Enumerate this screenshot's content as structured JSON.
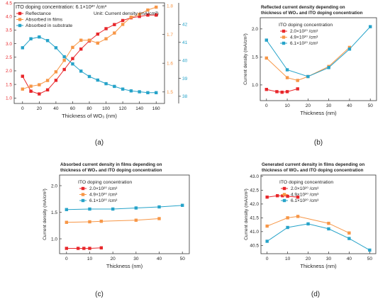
{
  "colors": {
    "red": "#e8262a",
    "orange": "#f79646",
    "blue": "#26a3c9"
  },
  "panels": [
    {
      "label": "(a)",
      "title_lines": [
        "ITO doping concentration: 6.1×10²⁰ /cm³",
        "Unit: Current density (mA/cm²)"
      ],
      "xlabel": "Thickness of WO₃ (nm)",
      "ylabel": "",
      "xlim": [
        -10,
        170
      ],
      "xticks": [
        "0",
        "20",
        "40",
        "60",
        "80",
        "100",
        "120",
        "140",
        "160"
      ],
      "xtick_values": [
        0,
        20,
        40,
        60,
        80,
        100,
        120,
        140,
        160
      ],
      "ylim": [
        0.8,
        4.5
      ],
      "yticks": [
        "1.0",
        "1.5",
        "2.0",
        "2.5",
        "3.0",
        "3.5",
        "4.0",
        "4.5"
      ],
      "ytick_values": [
        1.0,
        1.5,
        2.0,
        2.5,
        3.0,
        3.5,
        4.0,
        4.5
      ],
      "y2lim": [
        1.46,
        1.81
      ],
      "y2ticks": [
        "1.5",
        "1.6",
        "1.7",
        "1.8"
      ],
      "y2tick_values": [
        1.5,
        1.6,
        1.7,
        1.8
      ],
      "y3lim": [
        37.6,
        43.2
      ],
      "y3ticks": [
        "38",
        "39",
        "40",
        "41",
        "42"
      ],
      "y3tick_values": [
        38,
        39,
        40,
        41,
        42
      ],
      "legend_lines": [
        "Reflectance",
        "Absorbed in films",
        "Absorbed in substrate"
      ],
      "series": [
        {
          "name": "Reflectance",
          "color": "#e8262a",
          "axis": "y",
          "x": [
            0,
            10,
            20,
            30,
            40,
            50,
            60,
            70,
            80,
            90,
            100,
            110,
            120,
            130,
            140,
            150,
            160
          ],
          "y": [
            1.8,
            1.25,
            1.15,
            1.3,
            1.65,
            2.05,
            2.45,
            2.8,
            3.1,
            3.35,
            3.55,
            3.7,
            3.85,
            3.95,
            4.0,
            4.05,
            4.05
          ]
        },
        {
          "name": "Absorbed in films",
          "color": "#f79646",
          "axis": "y2",
          "x": [
            0,
            10,
            20,
            30,
            40,
            50,
            60,
            70,
            80,
            90,
            100,
            110,
            120,
            130,
            140,
            150,
            160
          ],
          "y": [
            1.51,
            1.52,
            1.525,
            1.54,
            1.57,
            1.61,
            1.655,
            1.68,
            1.68,
            1.67,
            1.685,
            1.705,
            1.735,
            1.76,
            1.77,
            1.785,
            1.795
          ]
        },
        {
          "name": "Absorbed in substrate",
          "color": "#26a3c9",
          "axis": "y3",
          "x": [
            0,
            10,
            20,
            30,
            40,
            50,
            60,
            70,
            80,
            90,
            100,
            110,
            120,
            130,
            140,
            150,
            160
          ],
          "y": [
            40.7,
            41.2,
            41.3,
            41.1,
            40.7,
            40.2,
            39.8,
            39.4,
            39.1,
            38.9,
            38.7,
            38.55,
            38.4,
            38.3,
            38.25,
            38.2,
            38.2
          ]
        }
      ]
    },
    {
      "label": "(b)",
      "title_lines": [
        "Reflected current density depending on",
        "thickness of WO₃ and ITO doping concentration"
      ],
      "xlabel": "Thickness (nm)",
      "ylabel": "Current density (mA/cm²)",
      "xlim": [
        -3,
        53
      ],
      "xticks": [
        "0",
        "10",
        "20",
        "30",
        "40",
        "50"
      ],
      "xtick_values": [
        0,
        10,
        20,
        30,
        40,
        50
      ],
      "ylim": [
        0.72,
        2.2
      ],
      "yticks": [
        "1.0",
        "1.5",
        "2.0"
      ],
      "ytick_values": [
        1.0,
        1.5,
        2.0
      ],
      "legend_title": "ITO doping concentration",
      "legend_lines": [
        "2.0×10²⁰ /cm³",
        "4.9×10²⁰ /cm³",
        "6.1×10²⁰ /cm³"
      ],
      "series": [
        {
          "name": "2.0×10²⁰ /cm³",
          "color": "#e8262a",
          "x": [
            0,
            5,
            7.5,
            10,
            15
          ],
          "y": [
            0.92,
            0.88,
            0.87,
            0.88,
            0.93
          ]
        },
        {
          "name": "4.9×10²⁰ /cm³",
          "color": "#f79646",
          "x": [
            0,
            10,
            15,
            20,
            30,
            40
          ],
          "y": [
            1.48,
            1.13,
            1.08,
            1.15,
            1.33,
            1.67
          ]
        },
        {
          "name": "6.1×10²⁰ /cm³",
          "color": "#26a3c9",
          "x": [
            0,
            10,
            20,
            30,
            40,
            50
          ],
          "y": [
            1.8,
            1.27,
            1.15,
            1.31,
            1.64,
            2.04
          ]
        }
      ]
    },
    {
      "label": "(c)",
      "title_lines": [
        "Absorbed current density in films depending on",
        "thickness of WO₃ and ITO doping concentration"
      ],
      "xlabel": "Thickness (nm)",
      "ylabel": "Current density (mA/cm²)",
      "xlim": [
        -3,
        53
      ],
      "xticks": [
        "0",
        "10",
        "20",
        "30",
        "40",
        "50"
      ],
      "xtick_values": [
        0,
        10,
        20,
        30,
        40,
        50
      ],
      "ylim": [
        0.72,
        2.2
      ],
      "yticks": [
        "1.0",
        "1.5",
        "2.0"
      ],
      "ytick_values": [
        1.0,
        1.5,
        2.0
      ],
      "legend_title": "ITO doping concentration",
      "legend_lines": [
        "2.0×10²⁰ /cm³",
        "4.9×10²⁰ /cm³",
        "6.1×10²⁰ /cm³"
      ],
      "series": [
        {
          "name": "2.0×10²⁰ /cm³",
          "color": "#e8262a",
          "x": [
            0,
            5,
            7.5,
            10,
            15
          ],
          "y": [
            0.82,
            0.82,
            0.82,
            0.82,
            0.83
          ]
        },
        {
          "name": "4.9×10²⁰ /cm³",
          "color": "#f79646",
          "x": [
            0,
            10,
            15,
            30,
            40
          ],
          "y": [
            1.31,
            1.32,
            1.33,
            1.35,
            1.38
          ]
        },
        {
          "name": "6.1×10²⁰ /cm³",
          "color": "#26a3c9",
          "x": [
            0,
            10,
            20,
            30,
            40,
            50
          ],
          "y": [
            1.55,
            1.56,
            1.56,
            1.58,
            1.6,
            1.63
          ]
        }
      ]
    },
    {
      "label": "(d)",
      "title_lines": [
        "Generated current density in films depending on",
        "thickness of WO₃ and ITO doping concentration"
      ],
      "xlabel": "Thickness (nm)",
      "ylabel": "Current density (mA/cm²)",
      "xlim": [
        -3,
        53
      ],
      "xticks": [
        "0",
        "10",
        "20",
        "30",
        "40",
        "50"
      ],
      "xtick_values": [
        0,
        10,
        20,
        30,
        40,
        50
      ],
      "ylim": [
        40.2,
        43.05
      ],
      "yticks": [
        "40.5",
        "41.0",
        "41.5",
        "42.0",
        "42.5",
        "43.0"
      ],
      "ytick_values": [
        40.5,
        41.0,
        41.5,
        42.0,
        42.5,
        43.0
      ],
      "legend_title": "ITO doping concentration",
      "legend_lines": [
        "2.0×10²⁰ /cm³",
        "4.9×10²⁰ /cm³",
        "6.1×10²⁰ /cm³"
      ],
      "series": [
        {
          "name": "2.0×10²⁰ /cm³",
          "color": "#e8262a",
          "x": [
            0,
            5,
            7.5,
            10,
            15
          ],
          "y": [
            42.25,
            42.3,
            42.3,
            42.28,
            42.25
          ]
        },
        {
          "name": "4.9×10²⁰ /cm³",
          "color": "#f79646",
          "x": [
            0,
            10,
            15,
            30,
            40
          ],
          "y": [
            41.2,
            41.5,
            41.55,
            41.3,
            40.95
          ]
        },
        {
          "name": "6.1×10²⁰ /cm³",
          "color": "#26a3c9",
          "x": [
            0,
            10,
            20,
            30,
            40,
            50
          ],
          "y": [
            40.65,
            41.15,
            41.28,
            41.1,
            40.75,
            40.33
          ]
        }
      ]
    }
  ]
}
